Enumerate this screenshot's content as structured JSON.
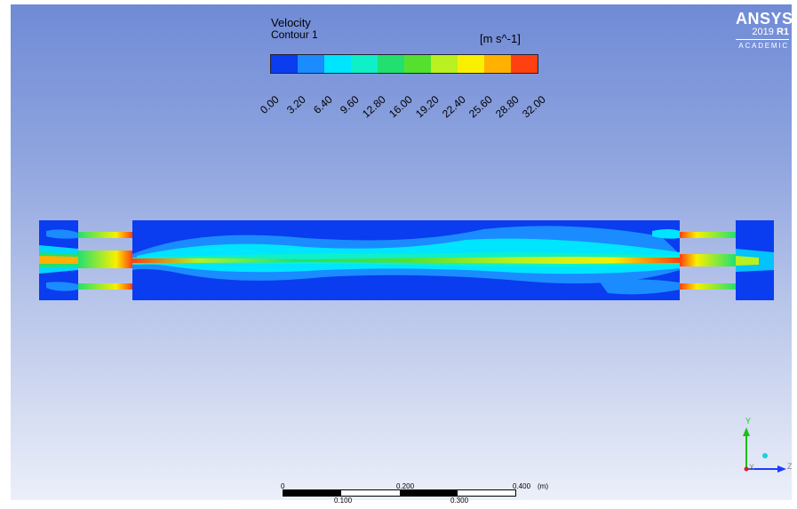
{
  "legend": {
    "title": "Velocity",
    "subtitle": "Contour 1",
    "unit": "[m s^-1]",
    "ticks": [
      "0.00",
      "3.20",
      "6.40",
      "9.60",
      "12.80",
      "16.00",
      "19.20",
      "22.40",
      "25.60",
      "28.80",
      "32.00"
    ],
    "colors": [
      "#0a3cf0",
      "#1a8cff",
      "#00e5ff",
      "#10f0c8",
      "#22e070",
      "#55e030",
      "#b8f020",
      "#f8f000",
      "#ffb000",
      "#ff4010"
    ]
  },
  "brand": {
    "name": "ANSYS",
    "version_year": "2019",
    "version_release": "R1",
    "edition": "ACADEMIC"
  },
  "scale": {
    "top_labels": [
      "0",
      "0.200",
      "0.400",
      "(m)"
    ],
    "bottom_labels": [
      "0.100",
      "0.300"
    ]
  },
  "triad": {
    "y": "Y",
    "z": "Z",
    "x": "X"
  },
  "colors": {
    "background_top": "#6f8ad6",
    "background_bottom": "#eef1fa",
    "domain": "#0a3cf0"
  }
}
